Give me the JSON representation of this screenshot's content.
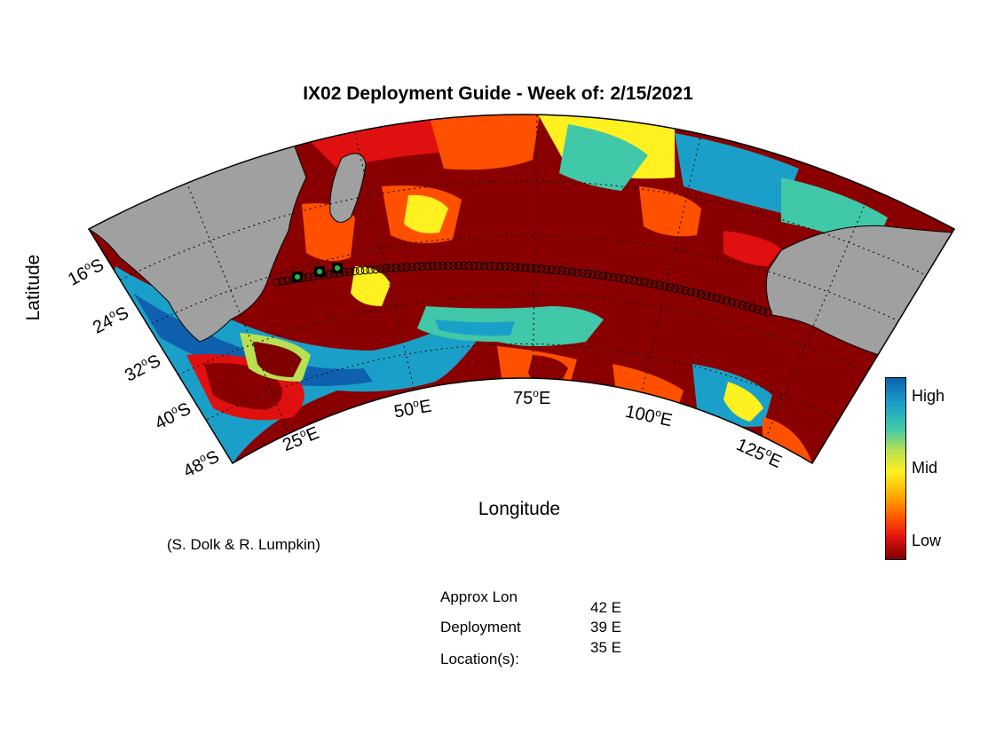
{
  "title": "IX02 Deployment Guide - Week of: 2/15/2021",
  "axes": {
    "xlabel": "Longitude",
    "ylabel": "Latitude",
    "lat_ticks": [
      "16",
      "24",
      "32",
      "40",
      "48"
    ],
    "lat_hemi": "S",
    "lon_ticks": [
      "25",
      "50",
      "75",
      "100",
      "125"
    ],
    "lon_hemi": "E",
    "degree_symbol": "o"
  },
  "credit": "(S. Dolk & R. Lumpkin)",
  "colorbar": {
    "labels": {
      "high": "High",
      "mid": "Mid",
      "low": "Low"
    },
    "colors": [
      "#800000",
      "#e01010",
      "#ff5000",
      "#ffb000",
      "#fff020",
      "#b8e050",
      "#40c8a8",
      "#1aa0c8",
      "#1060b0"
    ]
  },
  "colors": {
    "land": "#a0a0a0",
    "track_marker": "#000000",
    "deployment_marker": "#1fbf3f"
  },
  "deployment_info": {
    "label_line1": "Approx Lon",
    "label_line2": "Deployment",
    "label_line3": "Location(s):",
    "locations": [
      "42 E",
      "39 E",
      "35 E"
    ]
  }
}
